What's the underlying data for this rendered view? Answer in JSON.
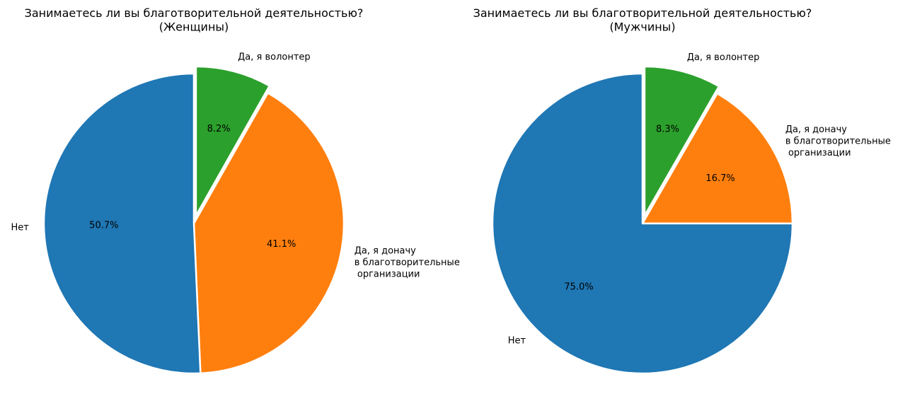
{
  "chart_data": [
    {
      "type": "pie",
      "title": "Занимаетесь ли вы благотворительной деятельностью?\n(Женщины)",
      "categories": [
        "Да, я волонтер",
        "Да, я доначу\nв благотворительные\n организации",
        "Нет"
      ],
      "values": [
        8.2,
        41.1,
        50.7
      ],
      "value_labels": [
        "8.2%",
        "41.1%",
        "50.7%"
      ],
      "colors": [
        "#2ca02c",
        "#ff7f0e",
        "#1f77b4"
      ],
      "exploded": [
        true,
        false,
        false
      ],
      "start_angle_deg": 90,
      "direction": "clockwise"
    },
    {
      "type": "pie",
      "title": "Занимаетесь ли вы благотворительной деятельностью?\n(Мужчины)",
      "categories": [
        "Да, я волонтер",
        "Да, я доначу\nв благотворительные\n организации",
        "Нет"
      ],
      "values": [
        8.3,
        16.7,
        75.0
      ],
      "value_labels": [
        "8.3%",
        "16.7%",
        "75.0%"
      ],
      "colors": [
        "#2ca02c",
        "#ff7f0e",
        "#1f77b4"
      ],
      "exploded": [
        true,
        false,
        false
      ],
      "start_angle_deg": 90,
      "direction": "clockwise"
    }
  ]
}
